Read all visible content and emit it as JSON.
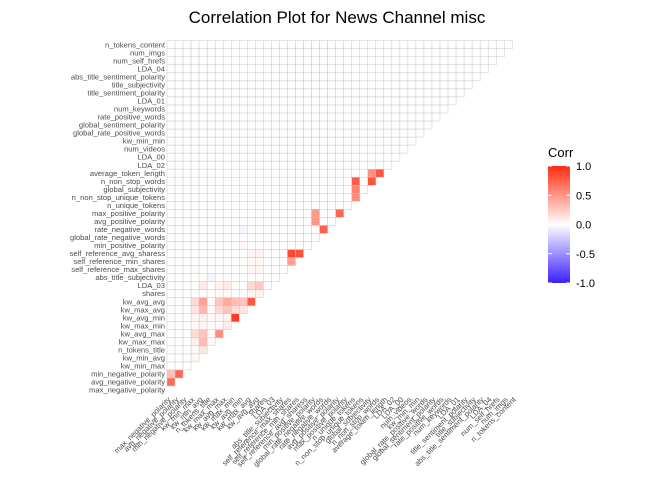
{
  "chart_data": {
    "type": "heatmap",
    "title": "Correlation Plot for News Channel misc",
    "variables": [
      "max_negative_polarity",
      "avg_negative_polarity",
      "min_negative_polarity",
      "kw_min_max",
      "kw_min_avg",
      "n_tokens_title",
      "kw_max_max",
      "kw_avg_max",
      "kw_max_min",
      "kw_avg_min",
      "kw_max_avg",
      "kw_avg_avg",
      "shares",
      "LDA_03",
      "abs_title_subjectivity",
      "self_reference_max_shares",
      "self_reference_min_shares",
      "self_reference_avg_sharess",
      "min_positive_polarity",
      "global_rate_negative_words",
      "rate_negative_words",
      "avg_positive_polarity",
      "max_positive_polarity",
      "n_unique_tokens",
      "n_non_stop_unique_tokens",
      "global_subjectivity",
      "n_non_stop_words",
      "average_token_length",
      "LDA_02",
      "LDA_00",
      "num_videos",
      "kw_min_min",
      "global_rate_positive_words",
      "global_sentiment_polarity",
      "rate_positive_words",
      "num_keywords",
      "LDA_01",
      "title_sentiment_polarity",
      "title_subjectivity",
      "abs_title_sentiment_polarity",
      "LDA_04",
      "num_self_hrefs",
      "num_imgs",
      "n_tokens_content"
    ],
    "legend": {
      "title": "Corr",
      "ticks": [
        1.0,
        0.5,
        0.0,
        -0.5,
        -1.0
      ],
      "tick_labels": [
        "1.0",
        "0.5",
        "0.0",
        "-0.5",
        "-1.0"
      ],
      "low_color": "#3a1fff",
      "mid_color": "#ffffff",
      "high_color": "#ff2c10",
      "position": "right"
    },
    "scale": [
      -1,
      1
    ],
    "lower_triangle": true,
    "cells": [
      [
        1,
        0,
        0.69
      ],
      [
        2,
        0,
        0.3
      ],
      [
        2,
        1,
        0.72
      ],
      [
        4,
        3,
        0.04
      ],
      [
        5,
        3,
        0.03
      ],
      [
        5,
        4,
        0.12
      ],
      [
        6,
        3,
        0.08
      ],
      [
        6,
        4,
        0.32
      ],
      [
        6,
        5,
        0.03
      ],
      [
        7,
        3,
        0.18
      ],
      [
        7,
        4,
        0.28
      ],
      [
        7,
        5,
        0.02
      ],
      [
        7,
        6,
        0.53
      ],
      [
        8,
        3,
        0.03
      ],
      [
        8,
        4,
        0.05
      ],
      [
        8,
        5,
        0.02
      ],
      [
        8,
        6,
        0.03
      ],
      [
        8,
        7,
        0.09
      ],
      [
        9,
        3,
        0.05
      ],
      [
        9,
        4,
        0.06
      ],
      [
        9,
        5,
        0.03
      ],
      [
        9,
        6,
        0.05
      ],
      [
        9,
        7,
        0.06
      ],
      [
        9,
        8,
        0.93
      ],
      [
        10,
        3,
        0.12
      ],
      [
        10,
        4,
        0.35
      ],
      [
        10,
        5,
        0.02
      ],
      [
        10,
        6,
        0.18
      ],
      [
        10,
        7,
        0.28
      ],
      [
        10,
        8,
        0.16
      ],
      [
        10,
        9,
        0.12
      ],
      [
        11,
        3,
        0.17
      ],
      [
        11,
        4,
        0.45
      ],
      [
        11,
        5,
        0.02
      ],
      [
        11,
        6,
        0.28
      ],
      [
        11,
        7,
        0.4
      ],
      [
        11,
        8,
        0.31
      ],
      [
        11,
        9,
        0.28
      ],
      [
        11,
        10,
        0.78
      ],
      [
        12,
        6,
        0.03
      ],
      [
        12,
        7,
        0.03
      ],
      [
        12,
        10,
        0.04
      ],
      [
        12,
        11,
        0.05
      ],
      [
        13,
        4,
        0.1
      ],
      [
        13,
        6,
        0.06
      ],
      [
        13,
        7,
        0.1
      ],
      [
        13,
        10,
        0.18
      ],
      [
        13,
        11,
        0.26
      ],
      [
        14,
        5,
        -0.04
      ],
      [
        15,
        3,
        0.02
      ],
      [
        15,
        10,
        0.05
      ],
      [
        15,
        11,
        0.05
      ],
      [
        16,
        10,
        0.04
      ],
      [
        16,
        11,
        0.04
      ],
      [
        16,
        15,
        0.45
      ],
      [
        17,
        10,
        0.05
      ],
      [
        17,
        11,
        0.06
      ],
      [
        17,
        15,
        0.86
      ],
      [
        17,
        16,
        0.82
      ],
      [
        22,
        18,
        0.48
      ],
      [
        21,
        18,
        0.5
      ],
      [
        20,
        19,
        0.75
      ],
      [
        26,
        25,
        0.82
      ],
      [
        27,
        26,
        0.8
      ],
      [
        26,
        23,
        0.78
      ],
      [
        25,
        23,
        0.6
      ],
      [
        24,
        23,
        0.55
      ],
      [
        22,
        21,
        0.72
      ],
      [
        27,
        25,
        0.52
      ],
      [
        20,
        9,
        -0.05
      ],
      [
        18,
        9,
        0.04
      ]
    ]
  }
}
